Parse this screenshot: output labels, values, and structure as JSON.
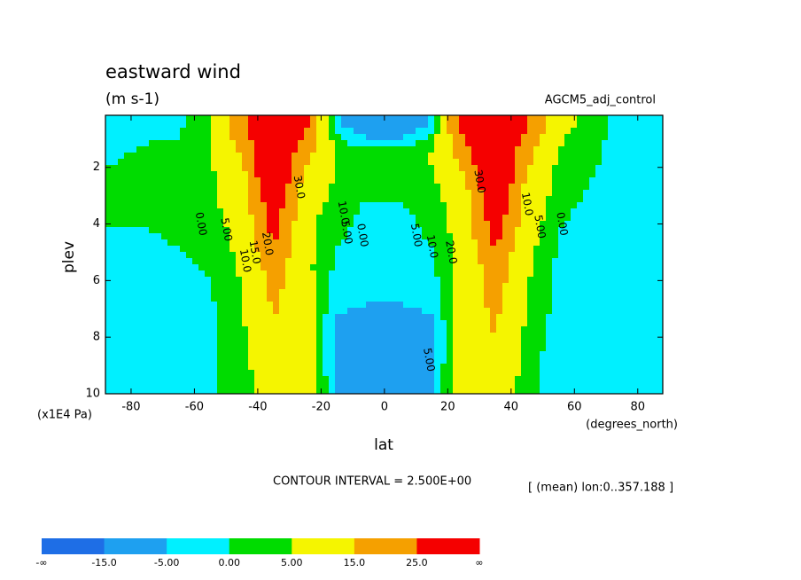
{
  "chart_data": {
    "type": "contour",
    "title": "eastward wind",
    "subtitle": "(m s-1)",
    "run_label": "AGCM5_adj_control",
    "x_label": "lat",
    "y_label": "plev",
    "y_unit": "(x1E4 Pa)",
    "x_unit": "(degrees_north)",
    "contour_interval": "CONTOUR INTERVAL = 2.500E+00",
    "mean_note": "[ (mean) lon:0..357.188 ]",
    "xlim": [
      -88.1,
      87.9
    ],
    "ylim": [
      0.16,
      10
    ],
    "y_inverted": true,
    "xticks": [
      -80,
      -60,
      -40,
      -20,
      0,
      20,
      40,
      60,
      80
    ],
    "yticks": [
      2,
      4,
      6,
      8,
      10
    ],
    "lat": [
      -85,
      -75,
      -65,
      -55,
      -45,
      -35,
      -25,
      -15,
      -5,
      5,
      15,
      25,
      35,
      45,
      55,
      65,
      75,
      85
    ],
    "plev": [
      0.5,
      1.5,
      2.5,
      3.5,
      4.5,
      5.5,
      6.5,
      7.5,
      8.5,
      9.5
    ],
    "values": [
      [
        -2,
        -1,
        -1,
        5,
        22,
        40,
        28,
        -3,
        -12,
        -12,
        -3,
        30,
        40,
        25,
        8,
        2,
        -2,
        -3
      ],
      [
        -0.5,
        0.5,
        1,
        4,
        16,
        40,
        18,
        5,
        2,
        2,
        6,
        20,
        40,
        18,
        4,
        0.5,
        -1,
        -1.5
      ],
      [
        1,
        2,
        3,
        4,
        11,
        38,
        11,
        4,
        2,
        2,
        4,
        12,
        38,
        13,
        3,
        0,
        -0.5,
        -1
      ],
      [
        0.5,
        1,
        2,
        3,
        9,
        31,
        8,
        2,
        -1,
        -1,
        2,
        9,
        33,
        10,
        1,
        -1,
        -1,
        -0.5
      ],
      [
        -0.5,
        -0.5,
        0.5,
        2,
        7,
        27,
        7,
        0.5,
        -2,
        -2,
        0.5,
        8,
        28,
        8,
        -0.5,
        -2,
        -1,
        -0.5
      ],
      [
        -0.5,
        -1,
        -1,
        0.5,
        6,
        20,
        7,
        -1,
        -3,
        -3,
        -1,
        8,
        21,
        6,
        -1,
        -3,
        -1.5,
        -0.5
      ],
      [
        -0.5,
        -1,
        -2,
        -0.5,
        5,
        17,
        8,
        -3,
        -4,
        -4,
        -3,
        9,
        18,
        5,
        -1.5,
        -3,
        -1.5,
        -0.5
      ],
      [
        -0.5,
        -1,
        -3,
        -1,
        4,
        15,
        9,
        -6,
        -7,
        -7,
        -6,
        10,
        16,
        4,
        -2,
        -3,
        -1,
        -0.5
      ],
      [
        -0.5,
        -0.5,
        -2,
        -1,
        3,
        13,
        11,
        -8,
        -9,
        -9,
        -8,
        12,
        14,
        3,
        -3,
        -2,
        -1,
        -0.5
      ],
      [
        -0.3,
        -0.3,
        -1,
        -0.5,
        2,
        11,
        13,
        -7,
        -8,
        -8,
        -7,
        14,
        12,
        2,
        -4,
        -1,
        -0.5,
        -0.2
      ]
    ],
    "levels": [
      {
        "value": -15,
        "label": "-15.0"
      },
      {
        "value": -5,
        "label": "-5.00"
      },
      {
        "value": 0,
        "label": "0.00"
      },
      {
        "value": 5,
        "label": "5.00"
      },
      {
        "value": 15,
        "label": "15.0"
      },
      {
        "value": 25,
        "label": "25.0"
      }
    ],
    "colorbar_end_labels": [
      "-∞",
      "∞"
    ],
    "colors": [
      "#1e6ee6",
      "#1ea0f0",
      "#00f0ff",
      "#00dc00",
      "#f5f500",
      "#f5a000",
      "#f50000"
    ],
    "contour_labels": [
      {
        "value": 0,
        "label": "0.00",
        "lat": -58,
        "plev": 4
      },
      {
        "value": 5,
        "label": "5.00",
        "lat": -50,
        "plev": 4.2
      },
      {
        "value": 10,
        "label": "10.0",
        "lat": -44,
        "plev": 5.3
      },
      {
        "value": 15,
        "label": "15.0",
        "lat": -41,
        "plev": 5
      },
      {
        "value": 20,
        "label": "20.0",
        "lat": -37,
        "plev": 4.7
      },
      {
        "value": 30,
        "label": "30.0",
        "lat": -27,
        "plev": 2.7
      },
      {
        "value": 10,
        "label": "10.0",
        "lat": -13,
        "plev": 3.6
      },
      {
        "value": 5,
        "label": "5.00",
        "lat": -12,
        "plev": 4.3
      },
      {
        "value": 0,
        "label": "0.00",
        "lat": -7,
        "plev": 4.4
      },
      {
        "value": 5,
        "label": "5.00",
        "lat": 10,
        "plev": 4.4
      },
      {
        "value": 10,
        "label": "10.0",
        "lat": 15,
        "plev": 4.8
      },
      {
        "value": 20,
        "label": "20.0",
        "lat": 21,
        "plev": 5
      },
      {
        "value": 30,
        "label": "30.0",
        "lat": 30,
        "plev": 2.5
      },
      {
        "value": 5,
        "label": "5.00",
        "lat": 14,
        "plev": 8.8
      },
      {
        "value": 10,
        "label": "10.0",
        "lat": 45,
        "plev": 3.3
      },
      {
        "value": 5,
        "label": "5.00",
        "lat": 49,
        "plev": 4.1
      },
      {
        "value": 0,
        "label": "0.00",
        "lat": 56,
        "plev": 4
      }
    ]
  }
}
